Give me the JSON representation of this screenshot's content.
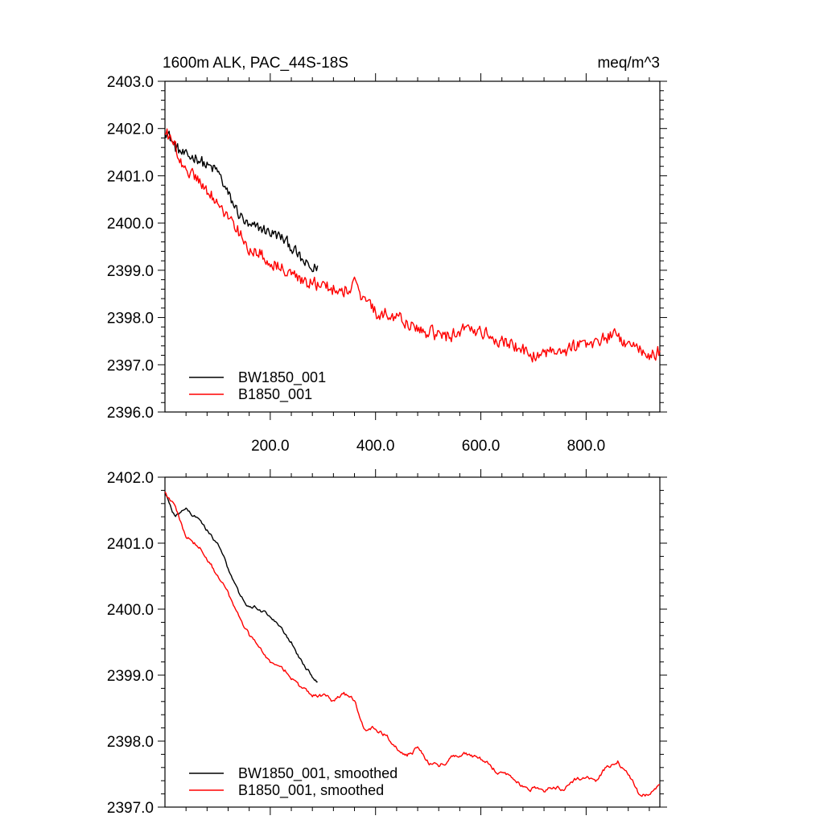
{
  "chart_data": [
    {
      "type": "line",
      "title_left": "1600m ALK, PAC_44S-18S",
      "title_right": "meq/m^3",
      "xlabel": "",
      "ylabel": "",
      "xlim": [
        0,
        940
      ],
      "ylim": [
        2396.0,
        2403.0
      ],
      "x_ticks": [
        200,
        400,
        600,
        800
      ],
      "x_tick_labels": [
        "200.0",
        "400.0",
        "600.0",
        "800.0"
      ],
      "y_ticks": [
        2396,
        2397,
        2398,
        2399,
        2400,
        2401,
        2402,
        2403
      ],
      "y_tick_labels": [
        "2396.0",
        "2397.0",
        "2398.0",
        "2399.0",
        "2400.0",
        "2401.0",
        "2402.0",
        "2403.0"
      ],
      "legend_position": "bottom-left",
      "series": [
        {
          "name": "BW1850_001",
          "color": "#000000",
          "noise": 0.18,
          "x": [
            0,
            20,
            40,
            60,
            80,
            100,
            120,
            140,
            160,
            180,
            200,
            220,
            240,
            260,
            280,
            290
          ],
          "y": [
            2402.0,
            2401.6,
            2401.4,
            2401.4,
            2401.2,
            2401.1,
            2400.6,
            2400.2,
            2399.9,
            2399.9,
            2399.8,
            2399.7,
            2399.5,
            2399.2,
            2399.0,
            2399.1
          ]
        },
        {
          "name": "B1850_001",
          "color": "#ff0000",
          "noise": 0.2,
          "x": [
            0,
            20,
            40,
            60,
            80,
            100,
            120,
            140,
            160,
            180,
            200,
            220,
            240,
            260,
            280,
            300,
            320,
            340,
            360,
            380,
            400,
            420,
            440,
            460,
            480,
            500,
            520,
            540,
            560,
            580,
            600,
            620,
            640,
            660,
            680,
            700,
            720,
            740,
            760,
            780,
            800,
            820,
            840,
            860,
            880,
            900,
            920,
            940
          ],
          "y": [
            2402.0,
            2401.6,
            2401.1,
            2401.0,
            2400.7,
            2400.4,
            2400.1,
            2399.8,
            2399.5,
            2399.4,
            2399.2,
            2399.1,
            2398.9,
            2398.8,
            2398.7,
            2398.7,
            2398.6,
            2398.6,
            2398.7,
            2398.3,
            2398.1,
            2398.1,
            2398.0,
            2397.9,
            2397.7,
            2397.7,
            2397.6,
            2397.6,
            2397.7,
            2397.8,
            2397.7,
            2397.6,
            2397.5,
            2397.4,
            2397.3,
            2397.2,
            2397.2,
            2397.3,
            2397.3,
            2397.4,
            2397.4,
            2397.5,
            2397.6,
            2397.6,
            2397.4,
            2397.3,
            2397.2,
            2397.3
          ]
        }
      ]
    },
    {
      "type": "line",
      "title_left": "",
      "title_right": "",
      "xlabel": "",
      "ylabel": "",
      "xlim": [
        0,
        940
      ],
      "ylim": [
        2397.0,
        2402.0
      ],
      "x_ticks": [
        200,
        400,
        600,
        800
      ],
      "x_tick_labels": [],
      "y_ticks": [
        2397,
        2398,
        2399,
        2400,
        2401,
        2402
      ],
      "y_tick_labels": [
        "2397.0",
        "2398.0",
        "2399.0",
        "2400.0",
        "2401.0",
        "2402.0"
      ],
      "legend_position": "bottom-left",
      "series": [
        {
          "name": "BW1850_001, smoothed",
          "color": "#000000",
          "noise": 0.05,
          "x": [
            0,
            20,
            40,
            60,
            80,
            100,
            120,
            140,
            160,
            180,
            200,
            220,
            240,
            260,
            280,
            290
          ],
          "y": [
            2401.8,
            2401.4,
            2401.5,
            2401.4,
            2401.2,
            2401.0,
            2400.6,
            2400.2,
            2400.0,
            2400.0,
            2399.9,
            2399.7,
            2399.5,
            2399.2,
            2399.0,
            2398.9
          ]
        },
        {
          "name": "B1850_001, smoothed",
          "color": "#ff0000",
          "noise": 0.06,
          "x": [
            0,
            20,
            40,
            60,
            80,
            100,
            120,
            140,
            160,
            180,
            200,
            220,
            240,
            260,
            280,
            300,
            320,
            340,
            360,
            380,
            400,
            420,
            440,
            460,
            480,
            500,
            520,
            540,
            560,
            580,
            600,
            620,
            640,
            660,
            680,
            700,
            720,
            740,
            760,
            780,
            800,
            820,
            840,
            860,
            880,
            900,
            920,
            940
          ],
          "y": [
            2401.8,
            2401.5,
            2401.1,
            2401.0,
            2400.8,
            2400.5,
            2400.2,
            2399.9,
            2399.6,
            2399.4,
            2399.2,
            2399.1,
            2399.0,
            2398.8,
            2398.7,
            2398.7,
            2398.6,
            2398.7,
            2398.6,
            2398.2,
            2398.2,
            2398.1,
            2397.9,
            2397.8,
            2397.9,
            2397.7,
            2397.6,
            2397.7,
            2397.8,
            2397.8,
            2397.7,
            2397.6,
            2397.5,
            2397.4,
            2397.3,
            2397.3,
            2397.2,
            2397.3,
            2397.3,
            2397.4,
            2397.4,
            2397.4,
            2397.6,
            2397.7,
            2397.5,
            2397.2,
            2397.2,
            2397.3
          ]
        }
      ]
    }
  ]
}
